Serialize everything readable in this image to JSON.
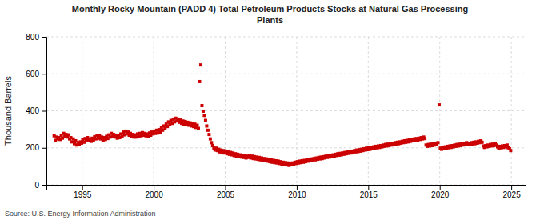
{
  "chart_data": {
    "type": "scatter",
    "title": "Monthly Rocky Mountain (PADD 4) Total Petroleum Products Stocks at Natural Gas Processing\nPlants",
    "ylabel": "Thousand Barrels",
    "annotations": [
      "Source: U.S. Energy Information Administration"
    ],
    "color": "#cc0000",
    "marker": "square",
    "grid": true,
    "xlim": [
      1992.5,
      2026.0
    ],
    "ylim": [
      0,
      800
    ],
    "xticks": [
      1995,
      2000,
      2005,
      2010,
      2015,
      2020,
      2025
    ],
    "yticks": [
      0,
      200,
      400,
      600,
      800
    ],
    "x": [
      1993.0416666666667,
      1993.125,
      1993.2083333333333,
      1993.2916666666667,
      1993.375,
      1993.4583333333333,
      1993.5416666666667,
      1993.625,
      1993.7083333333333,
      1993.7916666666667,
      1993.875,
      1993.9583333333333,
      1994.0416666666667,
      1994.125,
      1994.2083333333333,
      1994.2916666666667,
      1994.375,
      1994.4583333333333,
      1994.5416666666667,
      1994.625,
      1994.7083333333333,
      1994.7916666666667,
      1994.875,
      1994.9583333333333,
      1995.0416666666667,
      1995.125,
      1995.2083333333333,
      1995.2916666666667,
      1995.375,
      1995.4583333333333,
      1995.5416666666667,
      1995.625,
      1995.7083333333333,
      1995.7916666666667,
      1995.875,
      1995.9583333333333,
      1996.0416666666667,
      1996.125,
      1996.2083333333333,
      1996.2916666666667,
      1996.375,
      1996.4583333333333,
      1996.5416666666667,
      1996.625,
      1996.7083333333333,
      1996.7916666666667,
      1996.875,
      1996.9583333333333,
      1997.0416666666667,
      1997.125,
      1997.2083333333333,
      1997.2916666666667,
      1997.375,
      1997.4583333333333,
      1997.5416666666667,
      1997.625,
      1997.7083333333333,
      1997.7916666666667,
      1997.875,
      1997.9583333333333,
      1998.0416666666667,
      1998.125,
      1998.2083333333333,
      1998.2916666666667,
      1998.375,
      1998.4583333333333,
      1998.5416666666667,
      1998.625,
      1998.7083333333333,
      1998.7916666666667,
      1998.875,
      1998.9583333333333,
      1999.0416666666667,
      1999.125,
      1999.2083333333333,
      1999.2916666666667,
      1999.375,
      1999.4583333333333,
      1999.5416666666667,
      1999.625,
      1999.7083333333333,
      1999.7916666666667,
      1999.875,
      1999.9583333333333,
      2000.0416666666667,
      2000.125,
      2000.2083333333333,
      2000.2916666666667,
      2000.375,
      2000.4583333333333,
      2000.5416666666667,
      2000.625,
      2000.7083333333333,
      2000.7916666666667,
      2000.875,
      2000.9583333333333,
      2001.0416666666667,
      2001.125,
      2001.2083333333333,
      2001.2916666666667,
      2001.375,
      2001.4583333333333,
      2001.5416666666667,
      2001.625,
      2001.7083333333333,
      2001.7916666666667,
      2001.875,
      2001.9583333333333,
      2002.0416666666667,
      2002.125,
      2002.2083333333333,
      2002.2916666666667,
      2002.375,
      2002.4583333333333,
      2002.5416666666667,
      2002.625,
      2002.7083333333333,
      2002.7916666666667,
      2002.875,
      2002.9583333333333,
      2003.0416666666667,
      2003.125,
      2003.2083333333333,
      2003.2916666666667,
      2003.375,
      2003.4583333333333,
      2003.5416666666667,
      2003.625,
      2003.7083333333333,
      2003.7916666666667,
      2003.875,
      2003.9583333333333,
      2004.0416666666667,
      2004.125,
      2004.2083333333333,
      2004.2916666666667,
      2004.375,
      2004.4583333333333,
      2004.5416666666667,
      2004.625,
      2004.7083333333333,
      2004.7916666666667,
      2004.875,
      2004.9583333333333,
      2005.0416666666667,
      2005.125,
      2005.2083333333333,
      2005.2916666666667,
      2005.375,
      2005.4583333333333,
      2005.5416666666667,
      2005.625,
      2005.7083333333333,
      2005.7916666666667,
      2005.875,
      2005.9583333333333,
      2006.0416666666667,
      2006.125,
      2006.2083333333333,
      2006.2916666666667,
      2006.375,
      2006.4583333333333,
      2006.5416666666667,
      2006.625,
      2006.7083333333333,
      2006.7916666666667,
      2006.875,
      2006.9583333333333,
      2007.0416666666667,
      2007.125,
      2007.2083333333333,
      2007.2916666666667,
      2007.375,
      2007.4583333333333,
      2007.5416666666667,
      2007.625,
      2007.7083333333333,
      2007.7916666666667,
      2007.875,
      2007.9583333333333,
      2008.0416666666667,
      2008.125,
      2008.2083333333333,
      2008.2916666666667,
      2008.375,
      2008.4583333333333,
      2008.5416666666667,
      2008.625,
      2008.7083333333333,
      2008.7916666666667,
      2008.875,
      2008.9583333333333,
      2009.0416666666667,
      2009.125,
      2009.2083333333333,
      2009.2916666666667,
      2009.375,
      2009.4583333333333,
      2009.5416666666667,
      2009.625,
      2009.7083333333333,
      2009.7916666666667,
      2009.875,
      2009.9583333333333,
      2010.0416666666667,
      2010.125,
      2010.2083333333333,
      2010.2916666666667,
      2010.375,
      2010.4583333333333,
      2010.5416666666667,
      2010.625,
      2010.7083333333333,
      2010.7916666666667,
      2010.875,
      2010.9583333333333,
      2011.0416666666667,
      2011.125,
      2011.2083333333333,
      2011.2916666666667,
      2011.375,
      2011.4583333333333,
      2011.5416666666667,
      2011.625,
      2011.7083333333333,
      2011.7916666666667,
      2011.875,
      2011.9583333333333,
      2012.0416666666667,
      2012.125,
      2012.2083333333333,
      2012.2916666666667,
      2012.375,
      2012.4583333333333,
      2012.5416666666667,
      2012.625,
      2012.7083333333333,
      2012.7916666666667,
      2012.875,
      2012.9583333333333,
      2013.0416666666667,
      2013.125,
      2013.2083333333333,
      2013.2916666666667,
      2013.375,
      2013.4583333333333,
      2013.5416666666667,
      2013.625,
      2013.7083333333333,
      2013.7916666666667,
      2013.875,
      2013.9583333333333,
      2014.0416666666667,
      2014.125,
      2014.2083333333333,
      2014.2916666666667,
      2014.375,
      2014.4583333333333,
      2014.5416666666667,
      2014.625,
      2014.7083333333333,
      2014.7916666666667,
      2014.875,
      2014.9583333333333,
      2015.0416666666667,
      2015.125,
      2015.2083333333333,
      2015.2916666666667,
      2015.375,
      2015.4583333333333,
      2015.5416666666667,
      2015.625,
      2015.7083333333333,
      2015.7916666666667,
      2015.875,
      2015.9583333333333,
      2016.0416666666667,
      2016.125,
      2016.2083333333333,
      2016.2916666666667,
      2016.375,
      2016.4583333333333,
      2016.5416666666667,
      2016.625,
      2016.7083333333333,
      2016.7916666666667,
      2016.875,
      2016.9583333333333,
      2017.0416666666667,
      2017.125,
      2017.2083333333333,
      2017.2916666666667,
      2017.375,
      2017.4583333333333,
      2017.5416666666667,
      2017.625,
      2017.7083333333333,
      2017.7916666666667,
      2017.875,
      2017.9583333333333,
      2018.0416666666667,
      2018.125,
      2018.2083333333333,
      2018.2916666666667,
      2018.375,
      2018.4583333333333,
      2018.5416666666667,
      2018.625,
      2018.7083333333333,
      2018.7916666666667,
      2018.875,
      2018.9583333333333,
      2019.0416666666667,
      2019.125,
      2019.2083333333333,
      2019.2916666666667,
      2019.375,
      2019.4583333333333,
      2019.5416666666667,
      2019.625,
      2019.7083333333333,
      2019.7916666666667,
      2019.875,
      2019.9583333333333,
      2020.0416666666667,
      2020.125,
      2020.2083333333333,
      2020.2916666666667,
      2020.375,
      2020.4583333333333,
      2020.5416666666667,
      2020.625,
      2020.7083333333333,
      2020.7916666666667,
      2020.875,
      2020.9583333333333,
      2021.0416666666667,
      2021.125,
      2021.2083333333333,
      2021.2916666666667,
      2021.375,
      2021.4583333333333,
      2021.5416666666667,
      2021.625,
      2021.7083333333333,
      2021.7916666666667,
      2021.875,
      2021.9583333333333,
      2022.0416666666667,
      2022.125,
      2022.2083333333333,
      2022.2916666666667,
      2022.375,
      2022.4583333333333,
      2022.5416666666667,
      2022.625,
      2022.7083333333333,
      2022.7916666666667,
      2022.875,
      2022.9583333333333,
      2023.0416666666667,
      2023.125,
      2023.2083333333333,
      2023.2916666666667,
      2023.375,
      2023.4583333333333,
      2023.5416666666667,
      2023.625,
      2023.7083333333333,
      2023.7916666666667,
      2023.875,
      2023.9583333333333,
      2024.0416666666667,
      2024.125,
      2024.2083333333333,
      2024.2916666666667,
      2024.375,
      2024.4583333333333,
      2024.5416666666667,
      2024.625,
      2024.7083333333333,
      2024.7916666666667,
      2024.875,
      2024.9583333333333
    ],
    "values": [
      265,
      240,
      258,
      248,
      255,
      245,
      268,
      252,
      278,
      262,
      272,
      258,
      270,
      248,
      255,
      232,
      248,
      222,
      238,
      215,
      228,
      218,
      232,
      225,
      245,
      230,
      250,
      238,
      255,
      242,
      248,
      235,
      252,
      240,
      260,
      248,
      268,
      252,
      265,
      248,
      258,
      242,
      255,
      245,
      262,
      250,
      270,
      258,
      278,
      262,
      272,
      258,
      268,
      252,
      265,
      255,
      275,
      262,
      285,
      270,
      290,
      275,
      285,
      268,
      278,
      262,
      272,
      258,
      270,
      258,
      275,
      262,
      278,
      265,
      282,
      268,
      278,
      265,
      275,
      262,
      280,
      268,
      285,
      275,
      290,
      278,
      295,
      280,
      298,
      285,
      308,
      295,
      318,
      305,
      328,
      315,
      340,
      325,
      348,
      332,
      355,
      340,
      360,
      345,
      355,
      338,
      350,
      332,
      345,
      328,
      342,
      325,
      338,
      322,
      335,
      318,
      332,
      315,
      328,
      310,
      322,
      305,
      558,
      648,
      428,
      398,
      375,
      348,
      318,
      295,
      272,
      248,
      228,
      212,
      198,
      188,
      198,
      185,
      192,
      178,
      188,
      175,
      185,
      172,
      182,
      168,
      178,
      165,
      175,
      162,
      172,
      158,
      168,
      155,
      165,
      152,
      162,
      150,
      160,
      148,
      158,
      145,
      155,
      148,
      158,
      145,
      155,
      142,
      152,
      140,
      150,
      138,
      148,
      135,
      145,
      132,
      142,
      130,
      140,
      128,
      138,
      125,
      135,
      122,
      132,
      120,
      130,
      118,
      128,
      115,
      125,
      112,
      122,
      110,
      120,
      108,
      118,
      105,
      115,
      108,
      118,
      112,
      122,
      115,
      125,
      118,
      128,
      120,
      130,
      122,
      132,
      125,
      135,
      128,
      138,
      130,
      140,
      132,
      142,
      135,
      145,
      138,
      148,
      140,
      150,
      142,
      152,
      145,
      155,
      148,
      158,
      150,
      160,
      152,
      162,
      155,
      165,
      158,
      168,
      160,
      170,
      162,
      172,
      165,
      175,
      168,
      178,
      170,
      180,
      172,
      182,
      175,
      185,
      178,
      188,
      180,
      190,
      182,
      192,
      185,
      195,
      188,
      198,
      190,
      200,
      192,
      202,
      195,
      205,
      198,
      208,
      200,
      210,
      202,
      212,
      205,
      215,
      208,
      218,
      210,
      220,
      212,
      222,
      215,
      225,
      218,
      228,
      220,
      230,
      222,
      232,
      225,
      235,
      228,
      238,
      230,
      240,
      232,
      242,
      235,
      245,
      238,
      248,
      240,
      250,
      242,
      252,
      245,
      255,
      248,
      258,
      250,
      215,
      208,
      218,
      210,
      220,
      212,
      222,
      215,
      225,
      218,
      228,
      432,
      198,
      192,
      202,
      195,
      205,
      198,
      208,
      200,
      210,
      202,
      212,
      205,
      215,
      208,
      218,
      210,
      220,
      212,
      222,
      215,
      225,
      218,
      228,
      220,
      225,
      218,
      228,
      220,
      230,
      222,
      232,
      225,
      235,
      228,
      238,
      230,
      210,
      202,
      212,
      205,
      215,
      208,
      218,
      210,
      220,
      212,
      222,
      215,
      205,
      198,
      208,
      200,
      210,
      202,
      212,
      205,
      215,
      200,
      195,
      185
    ]
  }
}
